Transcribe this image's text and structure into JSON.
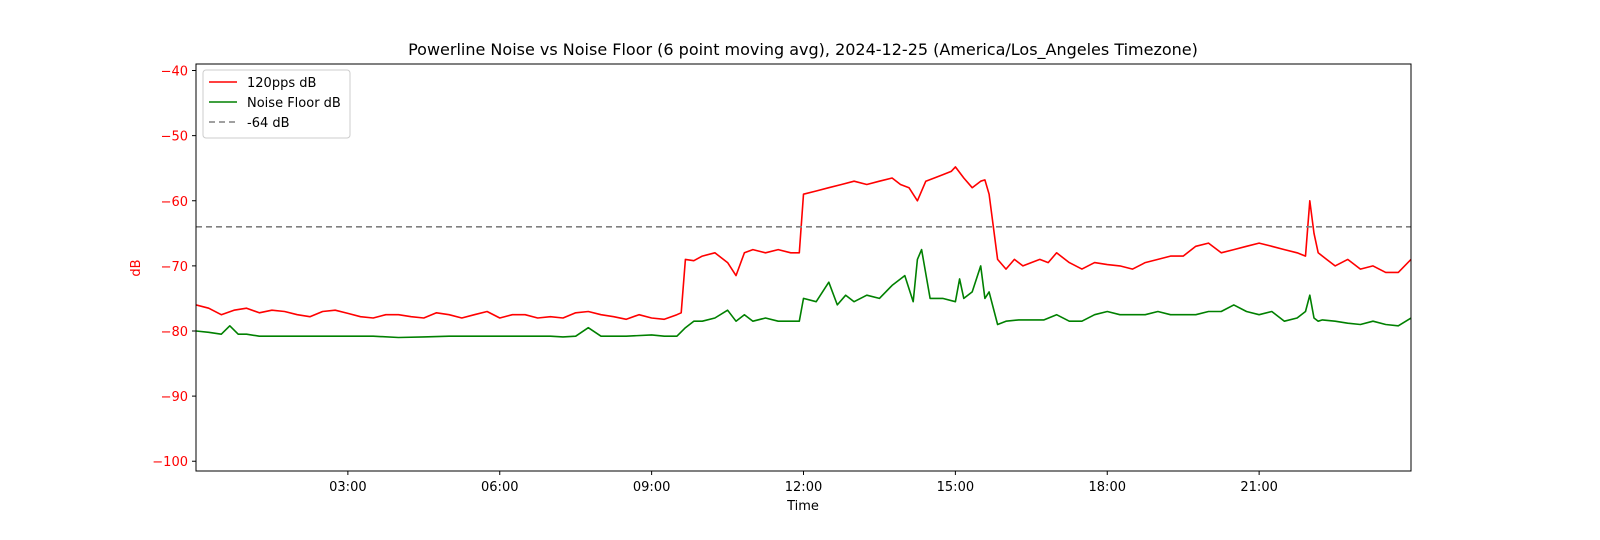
{
  "chart_data": {
    "type": "line",
    "title": "Powerline Noise vs Noise Floor (6 point moving avg), 2024-12-25 (America/Los_Angeles Timezone)",
    "xlabel": "Time",
    "ylabel": "dB",
    "xlim": [
      "00:00",
      "24:00"
    ],
    "ylim": [
      -101.5,
      -39
    ],
    "x_ticks": [
      "03:00",
      "06:00",
      "09:00",
      "12:00",
      "15:00",
      "18:00",
      "21:00"
    ],
    "y_ticks": [
      -40,
      -50,
      -60,
      -70,
      -80,
      -90,
      -100
    ],
    "grid": false,
    "legend_position": "top-left",
    "series": [
      {
        "name": "120pps dB",
        "color": "#ff0000",
        "x": [
          "00:00",
          "00:15",
          "00:30",
          "00:45",
          "01:00",
          "01:15",
          "01:30",
          "01:45",
          "02:00",
          "02:15",
          "02:30",
          "02:45",
          "03:00",
          "03:15",
          "03:30",
          "03:45",
          "04:00",
          "04:15",
          "04:30",
          "04:45",
          "05:00",
          "05:15",
          "05:30",
          "05:45",
          "06:00",
          "06:15",
          "06:30",
          "06:45",
          "07:00",
          "07:15",
          "07:30",
          "07:45",
          "08:00",
          "08:15",
          "08:30",
          "08:45",
          "09:00",
          "09:15",
          "09:30",
          "09:35",
          "09:40",
          "09:50",
          "10:00",
          "10:15",
          "10:30",
          "10:40",
          "10:50",
          "11:00",
          "11:15",
          "11:30",
          "11:45",
          "11:55",
          "12:00",
          "12:15",
          "12:30",
          "12:45",
          "13:00",
          "13:15",
          "13:30",
          "13:45",
          "13:55",
          "14:05",
          "14:15",
          "14:25",
          "14:35",
          "14:45",
          "14:55",
          "15:00",
          "15:10",
          "15:20",
          "15:30",
          "15:35",
          "15:40",
          "15:50",
          "16:00",
          "16:10",
          "16:20",
          "16:30",
          "16:40",
          "16:50",
          "17:00",
          "17:15",
          "17:30",
          "17:45",
          "18:00",
          "18:15",
          "18:30",
          "18:45",
          "19:00",
          "19:15",
          "19:30",
          "19:45",
          "20:00",
          "20:15",
          "20:30",
          "20:45",
          "21:00",
          "21:15",
          "21:30",
          "21:45",
          "21:55",
          "22:00",
          "22:05",
          "22:10",
          "22:20",
          "22:30",
          "22:45",
          "23:00",
          "23:15",
          "23:30",
          "23:45",
          "24:00"
        ],
        "y": [
          -76,
          -76.5,
          -77.5,
          -76.8,
          -76.5,
          -77.2,
          -76.8,
          -77,
          -77.5,
          -77.8,
          -77,
          -76.8,
          -77.3,
          -77.8,
          -78,
          -77.5,
          -77.5,
          -77.8,
          -78,
          -77.2,
          -77.5,
          -78,
          -77.5,
          -77,
          -78,
          -77.5,
          -77.5,
          -78,
          -77.8,
          -78,
          -77.2,
          -77,
          -77.5,
          -77.8,
          -78.2,
          -77.5,
          -78,
          -78.2,
          -77.5,
          -77.2,
          -69,
          -69.2,
          -68.5,
          -68,
          -69.5,
          -71.5,
          -68,
          -67.5,
          -68,
          -67.5,
          -68,
          -68,
          -59,
          -58.5,
          -58,
          -57.5,
          -57,
          -57.5,
          -57,
          -56.5,
          -57.5,
          -58,
          -60,
          -57,
          -56.5,
          -56,
          -55.5,
          -54.8,
          -56.5,
          -58,
          -57,
          -56.8,
          -59,
          -69,
          -70.5,
          -69,
          -70,
          -69.5,
          -69,
          -69.5,
          -68,
          -69.5,
          -70.5,
          -69.5,
          -69.8,
          -70,
          -70.5,
          -69.5,
          -69,
          -68.5,
          -68.5,
          -67,
          -66.5,
          -68,
          -67.5,
          -67,
          -66.5,
          -67,
          -67.5,
          -68,
          -68.5,
          -60,
          -65,
          -68,
          -69,
          -70,
          -69,
          -70.5,
          -70,
          -71,
          -71,
          -69
        ]
      },
      {
        "name": "Noise Floor dB",
        "color": "#008000",
        "x": [
          "00:00",
          "00:15",
          "00:30",
          "00:40",
          "00:50",
          "01:00",
          "01:15",
          "01:30",
          "01:45",
          "02:00",
          "02:30",
          "03:00",
          "03:30",
          "04:00",
          "04:30",
          "05:00",
          "05:30",
          "06:00",
          "06:30",
          "07:00",
          "07:15",
          "07:30",
          "07:45",
          "08:00",
          "08:30",
          "09:00",
          "09:15",
          "09:30",
          "09:40",
          "09:50",
          "10:00",
          "10:15",
          "10:30",
          "10:40",
          "10:50",
          "11:00",
          "11:15",
          "11:30",
          "11:45",
          "11:55",
          "12:00",
          "12:15",
          "12:30",
          "12:40",
          "12:50",
          "13:00",
          "13:15",
          "13:30",
          "13:45",
          "14:00",
          "14:10",
          "14:15",
          "14:20",
          "14:30",
          "14:45",
          "15:00",
          "15:05",
          "15:10",
          "15:20",
          "15:30",
          "15:35",
          "15:40",
          "15:50",
          "16:00",
          "16:15",
          "16:30",
          "16:45",
          "17:00",
          "17:15",
          "17:30",
          "17:45",
          "18:00",
          "18:15",
          "18:30",
          "18:45",
          "19:00",
          "19:15",
          "19:30",
          "19:45",
          "20:00",
          "20:15",
          "20:30",
          "20:45",
          "21:00",
          "21:15",
          "21:30",
          "21:45",
          "21:55",
          "22:00",
          "22:05",
          "22:10",
          "22:15",
          "22:30",
          "22:45",
          "23:00",
          "23:15",
          "23:30",
          "23:45",
          "24:00"
        ],
        "y": [
          -80,
          -80.2,
          -80.5,
          -79.2,
          -80.5,
          -80.5,
          -80.8,
          -80.8,
          -80.8,
          -80.8,
          -80.8,
          -80.8,
          -80.8,
          -81,
          -80.9,
          -80.8,
          -80.8,
          -80.8,
          -80.8,
          -80.8,
          -80.9,
          -80.8,
          -79.5,
          -80.8,
          -80.8,
          -80.6,
          -80.8,
          -80.8,
          -79.5,
          -78.5,
          -78.5,
          -78,
          -76.8,
          -78.5,
          -77.5,
          -78.5,
          -78,
          -78.5,
          -78.5,
          -78.5,
          -75,
          -75.5,
          -72.5,
          -76,
          -74.5,
          -75.5,
          -74.5,
          -75,
          -73,
          -71.5,
          -75.5,
          -69,
          -67.5,
          -75,
          -75,
          -75.5,
          -72,
          -75,
          -74,
          -70,
          -75,
          -74,
          -79,
          -78.5,
          -78.3,
          -78.3,
          -78.3,
          -77.5,
          -78.5,
          -78.5,
          -77.5,
          -77,
          -77.5,
          -77.5,
          -77.5,
          -77,
          -77.5,
          -77.5,
          -77.5,
          -77,
          -77,
          -76,
          -77,
          -77.5,
          -77,
          -78.5,
          -78,
          -77,
          -74.5,
          -78,
          -78.5,
          -78.3,
          -78.5,
          -78.8,
          -79,
          -78.5,
          -79,
          -79.2,
          -78
        ]
      }
    ],
    "reference_lines": [
      {
        "name": "-64 dB",
        "y": -64,
        "color": "#808080",
        "style": "dashed"
      }
    ],
    "ylabel_color": "#ff0000",
    "ytick_color": "#ff0000"
  }
}
